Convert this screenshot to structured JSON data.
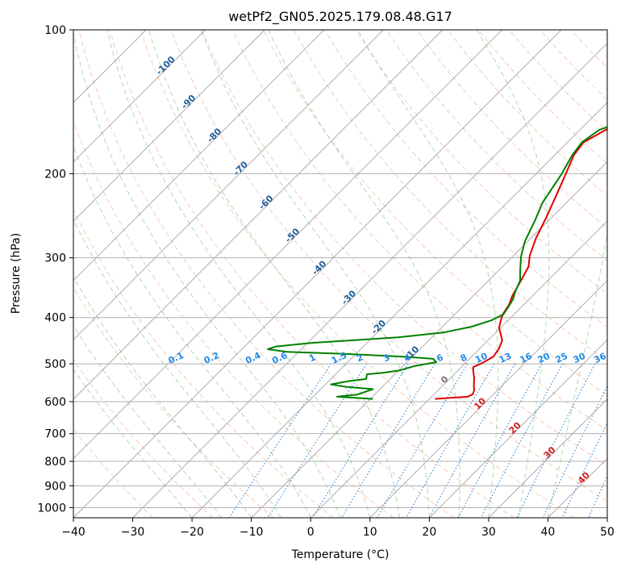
{
  "chart_data": {
    "type": "line",
    "title": "wetPf2_GN05.2025.179.08.48.G17",
    "xlabel": "Temperature (°C)",
    "ylabel": "Pressure (hPa)",
    "xlim": [
      -40,
      50
    ],
    "ylim": [
      1050,
      100
    ],
    "y_scale": "log",
    "grid": true,
    "x_ticks": [
      "−40",
      "−30",
      "−20",
      "−10",
      "0",
      "10",
      "20",
      "30",
      "40",
      "50"
    ],
    "y_ticks": [
      {
        "p": 100,
        "label": "100"
      },
      {
        "p": 200,
        "label": "200"
      },
      {
        "p": 300,
        "label": "300"
      },
      {
        "p": 400,
        "label": "400"
      },
      {
        "p": 500,
        "label": "500"
      },
      {
        "p": 600,
        "label": "600"
      },
      {
        "p": 700,
        "label": "700"
      },
      {
        "p": 800,
        "label": "800"
      },
      {
        "p": 900,
        "label": "900"
      },
      {
        "p": 1000,
        "label": "1000"
      }
    ],
    "skew_isotherm_labels": [
      {
        "t": -100,
        "p": 120,
        "label": "-100"
      },
      {
        "t": -90,
        "p": 143,
        "label": "-90"
      },
      {
        "t": -80,
        "p": 168,
        "label": "-80"
      },
      {
        "t": -70,
        "p": 197,
        "label": "-70"
      },
      {
        "t": -60,
        "p": 232,
        "label": "-60"
      },
      {
        "t": -50,
        "p": 272,
        "label": "-50"
      },
      {
        "t": -40,
        "p": 318,
        "label": "-40"
      },
      {
        "t": -30,
        "p": 367,
        "label": "-30"
      },
      {
        "t": -20,
        "p": 423,
        "label": "-20"
      },
      {
        "t": -10,
        "p": 480,
        "label": "-10"
      },
      {
        "t": 0,
        "p": 545,
        "label": "0"
      },
      {
        "t": 10,
        "p": 612,
        "label": "10"
      },
      {
        "t": 20,
        "p": 688,
        "label": "20"
      },
      {
        "t": 30,
        "p": 775,
        "label": "30"
      },
      {
        "t": 40,
        "p": 875,
        "label": "40"
      }
    ],
    "mixing_ratio_labels": [
      "0.1",
      "0.2",
      "0.4",
      "0.6",
      "1",
      "1.5",
      "2",
      "3",
      "4",
      "6",
      "8",
      "10",
      "13",
      "16",
      "20",
      "25",
      "30",
      "36"
    ],
    "mixing_ratio_label_x": [
      -22.5,
      -16.5,
      -9.5,
      -5,
      0.5,
      5,
      8.5,
      13,
      16.5,
      22,
      26,
      29,
      33,
      36.5,
      39.5,
      42.5,
      45.5,
      49
    ],
    "series": [
      {
        "color": "#e00000",
        "points": [
          [
            385,
            100
          ],
          [
            365,
            114
          ],
          [
            352,
            130
          ],
          [
            330,
            140
          ],
          [
            293,
            152
          ],
          [
            270,
            162
          ],
          [
            258,
            172
          ],
          [
            262,
            183
          ],
          [
            275,
            200
          ],
          [
            290,
            222
          ],
          [
            305,
            247
          ],
          [
            318,
            273
          ],
          [
            332,
            297
          ],
          [
            344,
            313
          ],
          [
            353,
            338
          ],
          [
            360,
            360
          ],
          [
            367,
            376
          ],
          [
            371,
            393
          ],
          [
            375,
            403
          ],
          [
            383,
            420
          ],
          [
            393,
            433
          ],
          [
            403,
            447
          ],
          [
            409,
            465
          ],
          [
            412,
            483
          ],
          [
            406,
            498
          ],
          [
            400,
            508
          ],
          [
            405,
            518
          ],
          [
            414,
            534
          ],
          [
            424,
            556
          ],
          [
            430,
            568
          ],
          [
            433,
            579
          ],
          [
            430,
            586
          ],
          [
            392,
            592
          ]
        ]
      },
      {
        "color": "#008000",
        "points": [
          [
            385,
            100
          ],
          [
            365,
            114
          ],
          [
            352,
            130
          ],
          [
            330,
            140
          ],
          [
            293,
            152
          ],
          [
            262,
            162
          ],
          [
            256,
            172
          ],
          [
            260,
            183
          ],
          [
            270,
            200
          ],
          [
            282,
            230
          ],
          [
            295,
            251
          ],
          [
            308,
            277
          ],
          [
            322,
            298
          ],
          [
            337,
            317
          ],
          [
            351,
            335
          ],
          [
            358,
            352
          ],
          [
            365,
            366
          ],
          [
            369,
            380
          ],
          [
            372,
            394
          ],
          [
            365,
            405
          ],
          [
            348,
            418
          ],
          [
            320,
            430
          ],
          [
            270,
            440
          ],
          [
            220,
            446
          ],
          [
            170,
            452
          ],
          [
            130,
            460
          ],
          [
            123,
            466
          ],
          [
            150,
            472
          ],
          [
            230,
            477
          ],
          [
            300,
            483
          ],
          [
            340,
            488
          ],
          [
            348,
            496
          ],
          [
            325,
            506
          ],
          [
            313,
            516
          ],
          [
            295,
            522
          ],
          [
            277,
            526
          ],
          [
            282,
            538
          ],
          [
            262,
            544
          ],
          [
            245,
            552
          ],
          [
            268,
            559
          ],
          [
            303,
            565
          ],
          [
            290,
            580
          ],
          [
            268,
            586
          ],
          [
            315,
            592
          ]
        ]
      }
    ]
  }
}
